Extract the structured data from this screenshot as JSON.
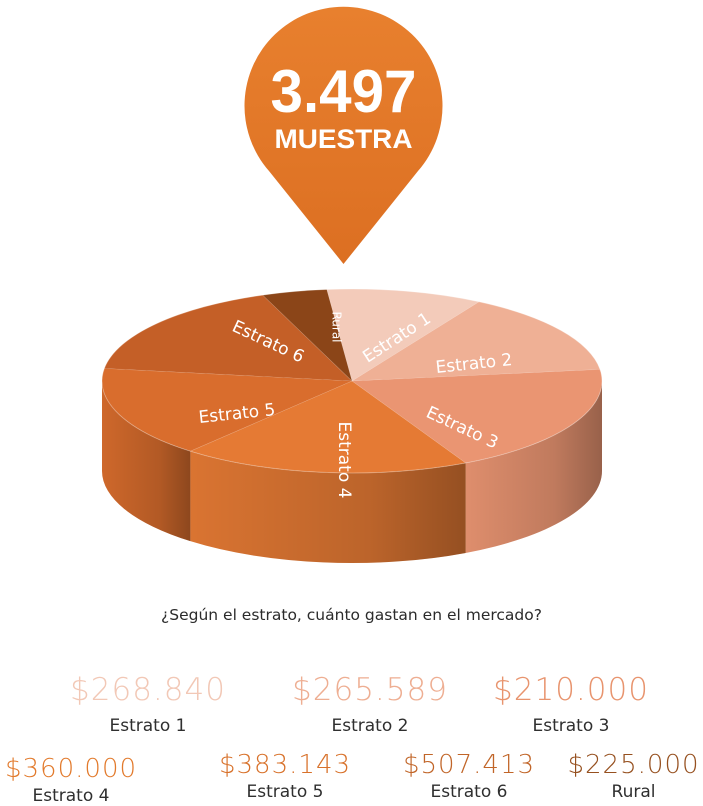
{
  "badge": {
    "value": "3.497",
    "label": "MUESTRA"
  },
  "question": "¿Según el estrato, cuánto gastan en el mercado?",
  "chart_data": {
    "type": "pie",
    "categories": [
      "Estrato 1",
      "Estrato 2",
      "Estrato 3",
      "Estrato 4",
      "Estrato 5",
      "Estrato 6",
      "Rural"
    ],
    "values": [
      10.1,
      14.5,
      19.5,
      18.7,
      16.0,
      17.0,
      4.2
    ],
    "colors": [
      "#f3cbba",
      "#efb095",
      "#ea9572",
      "#e57a34",
      "#d96d2d",
      "#c45f27",
      "#8b4518"
    ]
  },
  "spending": [
    {
      "amount": "$268.840",
      "label": "Estrato 1",
      "color": "#f2c8b6"
    },
    {
      "amount": "$265.589",
      "label": "Estrato 2",
      "color": "#eeae92"
    },
    {
      "amount": "$210.000",
      "label": "Estrato 3",
      "color": "#e8946e"
    },
    {
      "amount": "$360.000",
      "label": "Estrato 4",
      "color": "#e27a2c"
    },
    {
      "amount": "$383.143",
      "label": "Estrato 5",
      "color": "#d8712a"
    },
    {
      "amount": "$507.413",
      "label": "Estrato 6",
      "color": "#c16528"
    },
    {
      "amount": "$225.000",
      "label": "Rural",
      "color": "#96501f"
    }
  ]
}
